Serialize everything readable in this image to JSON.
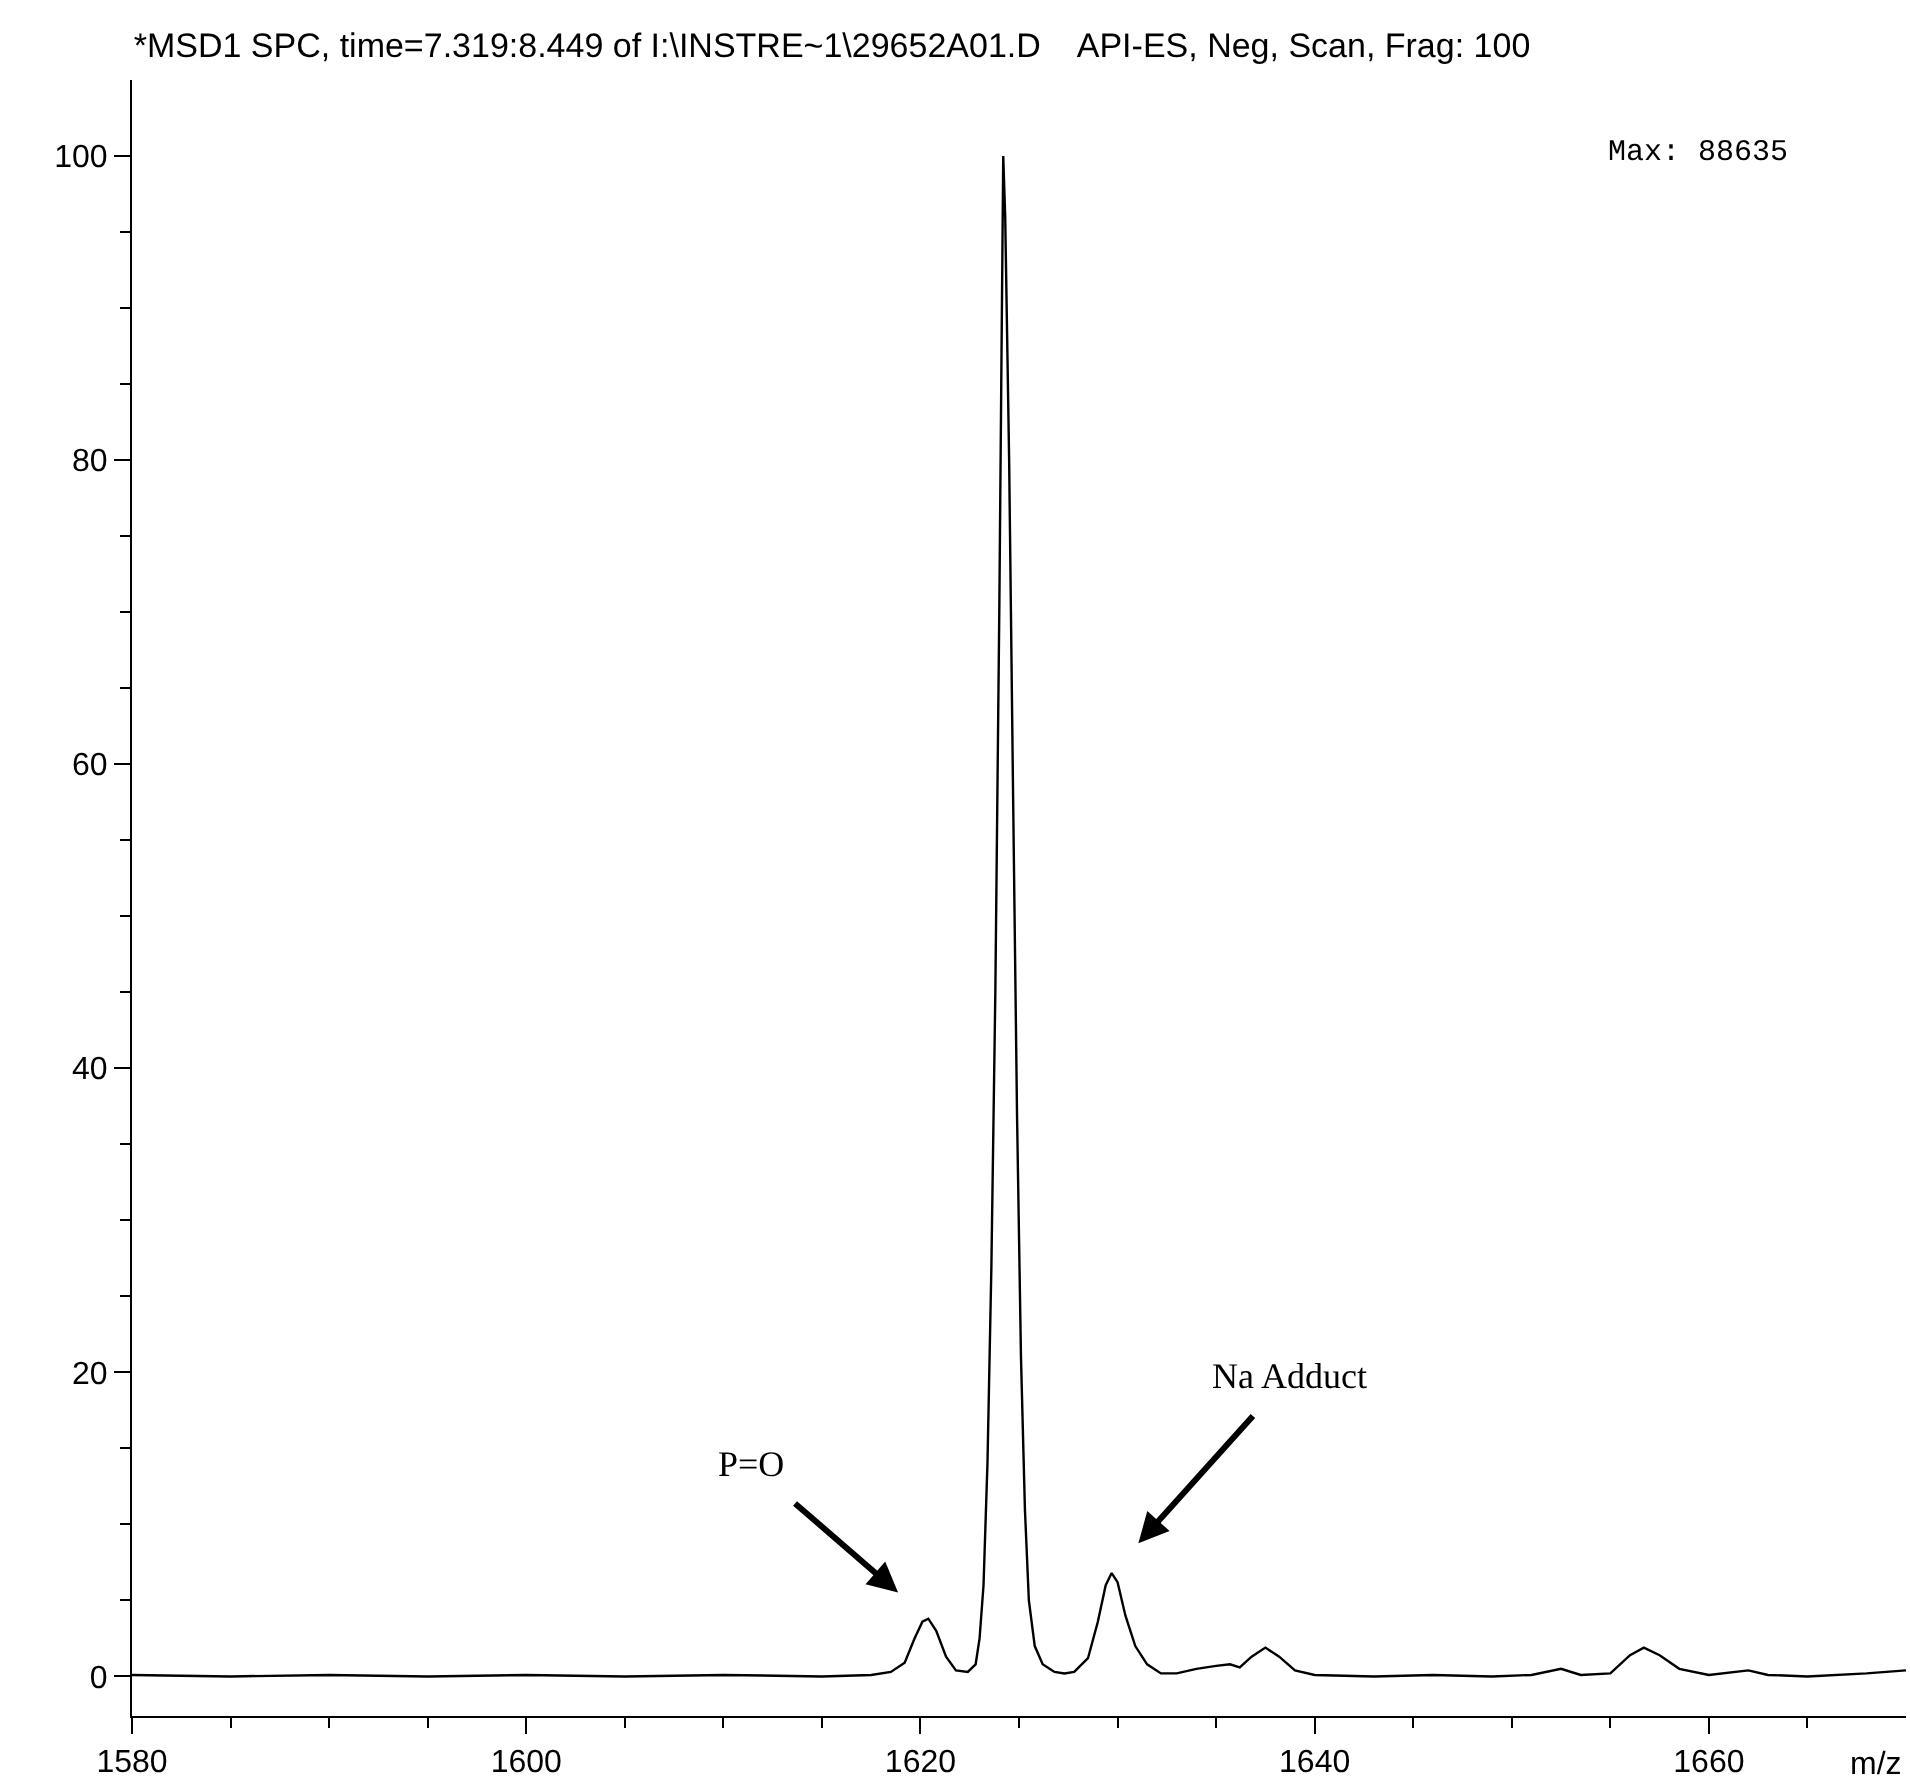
{
  "chart_data": {
    "type": "line",
    "title": "*MSD1 SPC, time=7.319:8.449 of I:\\INSTRE~1\\29652A01.D    API-ES, Neg, Scan, Frag: 100",
    "xlabel": "m/z",
    "x": [
      1580,
      1585,
      1590,
      1595,
      1600,
      1605,
      1610,
      1615,
      1617.5,
      1618.5,
      1619.2,
      1619.7,
      1620.1,
      1620.4,
      1620.8,
      1621.3,
      1621.8,
      1622.4,
      1622.8,
      1623.0,
      1623.2,
      1623.4,
      1623.6,
      1623.8,
      1624.0,
      1624.1,
      1624.2,
      1624.3,
      1624.5,
      1624.7,
      1624.9,
      1625.1,
      1625.3,
      1625.5,
      1625.8,
      1626.2,
      1626.8,
      1627.3,
      1627.8,
      1628.5,
      1629.0,
      1629.4,
      1629.7,
      1630.0,
      1630.4,
      1630.9,
      1631.5,
      1632.2,
      1633,
      1634,
      1635,
      1635.7,
      1636.2,
      1636.8,
      1637.5,
      1638.2,
      1639,
      1640,
      1643,
      1646,
      1649,
      1651,
      1652.5,
      1653.5,
      1655,
      1656,
      1656.7,
      1657.5,
      1658.5,
      1660,
      1662,
      1663,
      1665,
      1668,
      1670
    ],
    "series": [
      {
        "color": "#000000",
        "values": [
          0.1,
          0.0,
          0.1,
          0.0,
          0.1,
          0.0,
          0.1,
          0.0,
          0.1,
          0.3,
          0.9,
          2.5,
          3.6,
          3.8,
          3.0,
          1.3,
          0.4,
          0.3,
          0.8,
          2.5,
          6,
          14,
          27,
          45,
          70,
          85,
          100,
          96,
          80,
          58,
          37,
          21,
          11,
          5,
          2,
          0.8,
          0.3,
          0.2,
          0.3,
          1.2,
          3.6,
          6.0,
          6.8,
          6.2,
          4.0,
          2.0,
          0.8,
          0.2,
          0.2,
          0.5,
          0.7,
          0.8,
          0.6,
          1.3,
          1.9,
          1.3,
          0.4,
          0.1,
          0.0,
          0.1,
          0.0,
          0.1,
          0.5,
          0.1,
          0.2,
          1.4,
          1.9,
          1.4,
          0.5,
          0.1,
          0.4,
          0.1,
          0.0,
          0.2,
          0.4
        ]
      }
    ],
    "xlim": [
      1580,
      1670
    ],
    "xticks": [
      1580,
      {
        "value": 1585,
        "label": null
      },
      {
        "value": 1590,
        "label": null
      },
      {
        "value": 1595,
        "label": null
      },
      1600,
      {
        "value": 1605,
        "label": null
      },
      {
        "value": 1610,
        "label": null
      },
      {
        "value": 1615,
        "label": null
      },
      1620,
      {
        "value": 1625,
        "label": null
      },
      {
        "value": 1630,
        "label": null
      },
      {
        "value": 1635,
        "label": null
      },
      1640,
      {
        "value": 1645,
        "label": null
      },
      {
        "value": 1650,
        "label": null
      },
      {
        "value": 1655,
        "label": null
      },
      1660,
      {
        "value": 1665,
        "label": null
      }
    ],
    "ylim": [
      -2.6,
      105
    ],
    "yticks": [
      0,
      {
        "value": 5,
        "label": null
      },
      {
        "value": 10,
        "label": null
      },
      {
        "value": 15,
        "label": null
      },
      20,
      {
        "value": 25,
        "label": null
      },
      {
        "value": 30,
        "label": null
      },
      {
        "value": 35,
        "label": null
      },
      40,
      {
        "value": 45,
        "label": null
      },
      {
        "value": 50,
        "label": null
      },
      {
        "value": 55,
        "label": null
      },
      60,
      {
        "value": 65,
        "label": null
      },
      {
        "value": 70,
        "label": null
      },
      {
        "value": 75,
        "label": null
      },
      80,
      {
        "value": 85,
        "label": null
      },
      {
        "value": 90,
        "label": null
      },
      {
        "value": 95,
        "label": null
      },
      100
    ],
    "marker": "none",
    "line_style": "solid",
    "annotations": [
      {
        "text": "P=O",
        "x": 1620.4,
        "y": 3.8
      },
      {
        "text": "Na Adduct",
        "x": 1629.7,
        "y": 6.8
      },
      "Max: 88635"
    ]
  }
}
